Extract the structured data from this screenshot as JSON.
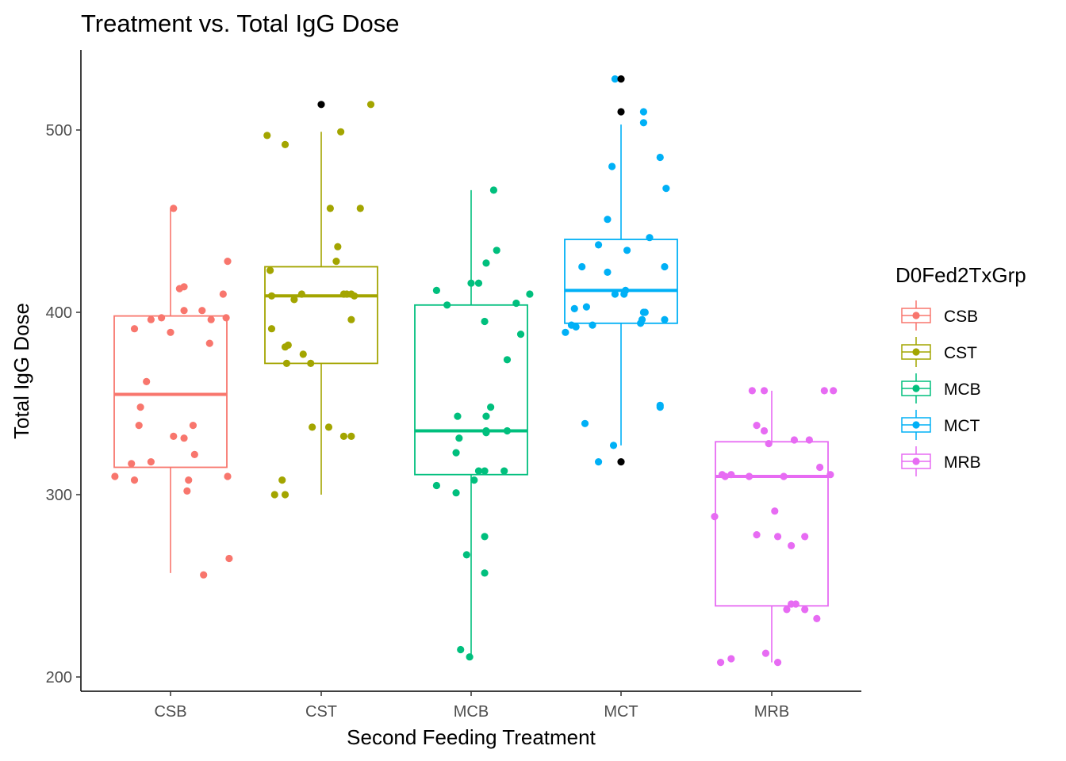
{
  "chart_data": {
    "type": "box",
    "title": "Treatment vs. Total IgG Dose",
    "xlabel": "Second Feeding Treatment",
    "ylabel": "Total IgG Dose",
    "categories": [
      "CSB",
      "CST",
      "MCB",
      "MCT",
      "MRB"
    ],
    "yticks": [
      200,
      300,
      400,
      500
    ],
    "ylim": [
      196,
      541
    ],
    "grid": false,
    "legend": {
      "title": "D0Fed2TxGrp",
      "position": "right",
      "entries": [
        "CSB",
        "CST",
        "MCB",
        "MCT",
        "MRB"
      ]
    },
    "colors": {
      "CSB": "#F8766D",
      "CST": "#A3A500",
      "MCB": "#00BF7D",
      "MCT": "#00B0F6",
      "MRB": "#E76BF3",
      "outlier": "#000000"
    },
    "boxes": [
      {
        "category": "CSB",
        "lower_whisker": 257,
        "q1": 315,
        "median": 355,
        "q3": 398,
        "upper_whisker": 457,
        "outliers": []
      },
      {
        "category": "CST",
        "lower_whisker": 300,
        "q1": 372,
        "median": 409,
        "q3": 425,
        "upper_whisker": 499,
        "outliers": [
          514
        ]
      },
      {
        "category": "MCB",
        "lower_whisker": 211,
        "q1": 311,
        "median": 335,
        "q3": 404,
        "upper_whisker": 467,
        "outliers": []
      },
      {
        "category": "MCT",
        "lower_whisker": 327,
        "q1": 394,
        "median": 412,
        "q3": 440,
        "upper_whisker": 503,
        "outliers": [
          318,
          510,
          528
        ]
      },
      {
        "category": "MRB",
        "lower_whisker": 208,
        "q1": 239,
        "median": 310,
        "q3": 329,
        "upper_whisker": 357,
        "outliers": []
      }
    ],
    "points": {
      "CSB": [
        [
          -0.37,
          310
        ],
        [
          -0.24,
          391
        ],
        [
          -0.21,
          338
        ],
        [
          -0.2,
          348
        ],
        [
          -0.16,
          362
        ],
        [
          -0.24,
          308
        ],
        [
          -0.26,
          317
        ],
        [
          -0.13,
          318
        ],
        [
          -0.13,
          396
        ],
        [
          -0.06,
          397
        ],
        [
          0.0,
          389
        ],
        [
          0.02,
          332
        ],
        [
          0.06,
          413
        ],
        [
          0.09,
          414
        ],
        [
          0.09,
          331
        ],
        [
          0.09,
          401
        ],
        [
          0.11,
          302
        ],
        [
          0.12,
          308
        ],
        [
          0.15,
          338
        ],
        [
          0.16,
          322
        ],
        [
          0.21,
          401
        ],
        [
          0.22,
          256
        ],
        [
          0.26,
          383
        ],
        [
          0.27,
          396
        ],
        [
          0.35,
          410
        ],
        [
          0.37,
          397
        ],
        [
          0.38,
          428
        ],
        [
          0.38,
          310
        ],
        [
          0.39,
          265
        ],
        [
          0.02,
          457
        ]
      ],
      "CST": [
        [
          -0.36,
          497
        ],
        [
          -0.33,
          391
        ],
        [
          -0.34,
          423
        ],
        [
          -0.33,
          409
        ],
        [
          -0.31,
          300
        ],
        [
          -0.26,
          308
        ],
        [
          -0.24,
          300
        ],
        [
          -0.24,
          381
        ],
        [
          -0.23,
          372
        ],
        [
          -0.24,
          492
        ],
        [
          -0.22,
          382
        ],
        [
          -0.18,
          407
        ],
        [
          -0.13,
          410
        ],
        [
          -0.12,
          377
        ],
        [
          -0.07,
          372
        ],
        [
          -0.06,
          337
        ],
        [
          0.05,
          337
        ],
        [
          0.06,
          457
        ],
        [
          0.1,
          428
        ],
        [
          0.11,
          436
        ],
        [
          0.13,
          499
        ],
        [
          0.15,
          332
        ],
        [
          0.15,
          410
        ],
        [
          0.17,
          410
        ],
        [
          0.2,
          410
        ],
        [
          0.2,
          332
        ],
        [
          0.2,
          396
        ],
        [
          0.22,
          409
        ],
        [
          0.26,
          457
        ],
        [
          0.33,
          514
        ]
      ],
      "MCB": [
        [
          -0.23,
          305
        ],
        [
          -0.23,
          412
        ],
        [
          -0.16,
          404
        ],
        [
          -0.1,
          323
        ],
        [
          -0.1,
          301
        ],
        [
          -0.09,
          343
        ],
        [
          -0.08,
          331
        ],
        [
          -0.07,
          215
        ],
        [
          -0.03,
          267
        ],
        [
          -0.01,
          211
        ],
        [
          0.0,
          416
        ],
        [
          0.02,
          308
        ],
        [
          0.05,
          416
        ],
        [
          0.05,
          313
        ],
        [
          0.09,
          313
        ],
        [
          0.09,
          395
        ],
        [
          0.1,
          335
        ],
        [
          0.1,
          334
        ],
        [
          0.1,
          343
        ],
        [
          0.09,
          277
        ],
        [
          0.09,
          257
        ],
        [
          0.1,
          427
        ],
        [
          0.13,
          348
        ],
        [
          0.15,
          467
        ],
        [
          0.17,
          434
        ],
        [
          0.22,
          313
        ],
        [
          0.24,
          335
        ],
        [
          0.24,
          374
        ],
        [
          0.3,
          405
        ],
        [
          0.33,
          388
        ],
        [
          0.39,
          410
        ]
      ],
      "MCT": [
        [
          -0.37,
          389
        ],
        [
          -0.33,
          393
        ],
        [
          -0.31,
          402
        ],
        [
          -0.3,
          392
        ],
        [
          -0.26,
          425
        ],
        [
          -0.24,
          339
        ],
        [
          -0.23,
          403
        ],
        [
          -0.19,
          393
        ],
        [
          -0.15,
          318
        ],
        [
          -0.15,
          437
        ],
        [
          -0.09,
          422
        ],
        [
          -0.09,
          451
        ],
        [
          -0.06,
          480
        ],
        [
          -0.05,
          327
        ],
        [
          -0.04,
          410
        ],
        [
          -0.04,
          528
        ],
        [
          0.02,
          410
        ],
        [
          0.03,
          412
        ],
        [
          0.04,
          434
        ],
        [
          0.13,
          394
        ],
        [
          0.14,
          396
        ],
        [
          0.15,
          400
        ],
        [
          0.16,
          400
        ],
        [
          0.15,
          504
        ],
        [
          0.15,
          510
        ],
        [
          0.19,
          441
        ],
        [
          0.26,
          485
        ],
        [
          0.26,
          349
        ],
        [
          0.26,
          348
        ],
        [
          0.3,
          468
        ],
        [
          0.29,
          425
        ],
        [
          0.29,
          396
        ]
      ],
      "MRB": [
        [
          -0.38,
          288
        ],
        [
          -0.34,
          208
        ],
        [
          -0.33,
          311
        ],
        [
          -0.31,
          310
        ],
        [
          -0.27,
          311
        ],
        [
          -0.27,
          210
        ],
        [
          -0.15,
          310
        ],
        [
          -0.13,
          357
        ],
        [
          -0.1,
          278
        ],
        [
          -0.1,
          338
        ],
        [
          -0.05,
          357
        ],
        [
          -0.05,
          335
        ],
        [
          -0.04,
          213
        ],
        [
          -0.02,
          328
        ],
        [
          0.02,
          291
        ],
        [
          0.04,
          208
        ],
        [
          0.04,
          277
        ],
        [
          0.08,
          310
        ],
        [
          0.1,
          237
        ],
        [
          0.13,
          240
        ],
        [
          0.13,
          272
        ],
        [
          0.15,
          330
        ],
        [
          0.16,
          240
        ],
        [
          0.22,
          277
        ],
        [
          0.22,
          237
        ],
        [
          0.25,
          330
        ],
        [
          0.3,
          232
        ],
        [
          0.32,
          315
        ],
        [
          0.35,
          357
        ],
        [
          0.39,
          311
        ],
        [
          0.41,
          357
        ]
      ]
    },
    "outlier_points": [
      {
        "category": "CST",
        "value": 514
      },
      {
        "category": "MCT",
        "value": 528
      },
      {
        "category": "MCT",
        "value": 510
      },
      {
        "category": "MCT",
        "value": 318
      }
    ]
  }
}
